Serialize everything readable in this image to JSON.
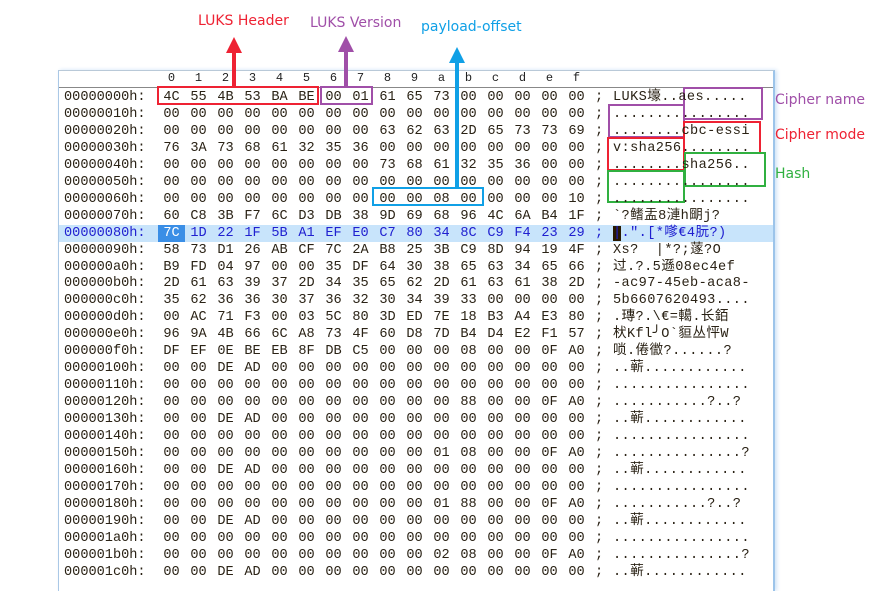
{
  "annotations": {
    "luks_header": {
      "label": "LUKS Header",
      "color": "#ee2233"
    },
    "luks_version": {
      "label": "LUKS Version",
      "color": "#a04fa8"
    },
    "payload_offset": {
      "label": "payload-offset",
      "color": "#10a0e6"
    },
    "cipher_name": {
      "label": "Cipher name",
      "color": "#a04fa8"
    },
    "cipher_mode": {
      "label": "Cipher mode",
      "color": "#ee2233"
    },
    "hash": {
      "label": "Hash",
      "color": "#30b040"
    }
  },
  "hex_editor": {
    "columns": [
      "0",
      "1",
      "2",
      "3",
      "4",
      "5",
      "6",
      "7",
      "8",
      "9",
      "a",
      "b",
      "c",
      "d",
      "e",
      "f"
    ],
    "selected_row": 8,
    "selected_col": 0,
    "rows": [
      {
        "addr": "00000000h:",
        "hex": [
          "4C",
          "55",
          "4B",
          "53",
          "BA",
          "BE",
          "00",
          "01",
          "61",
          "65",
          "73",
          "00",
          "00",
          "00",
          "00",
          "00"
        ],
        "ascii": "LUKS壕..aes....."
      },
      {
        "addr": "00000010h:",
        "hex": [
          "00",
          "00",
          "00",
          "00",
          "00",
          "00",
          "00",
          "00",
          "00",
          "00",
          "00",
          "00",
          "00",
          "00",
          "00",
          "00"
        ],
        "ascii": "................"
      },
      {
        "addr": "00000020h:",
        "hex": [
          "00",
          "00",
          "00",
          "00",
          "00",
          "00",
          "00",
          "00",
          "63",
          "62",
          "63",
          "2D",
          "65",
          "73",
          "73",
          "69"
        ],
        "ascii": "........cbc-essi"
      },
      {
        "addr": "00000030h:",
        "hex": [
          "76",
          "3A",
          "73",
          "68",
          "61",
          "32",
          "35",
          "36",
          "00",
          "00",
          "00",
          "00",
          "00",
          "00",
          "00",
          "00"
        ],
        "ascii": "v:sha256........"
      },
      {
        "addr": "00000040h:",
        "hex": [
          "00",
          "00",
          "00",
          "00",
          "00",
          "00",
          "00",
          "00",
          "73",
          "68",
          "61",
          "32",
          "35",
          "36",
          "00",
          "00"
        ],
        "ascii": "........sha256.."
      },
      {
        "addr": "00000050h:",
        "hex": [
          "00",
          "00",
          "00",
          "00",
          "00",
          "00",
          "00",
          "00",
          "00",
          "00",
          "00",
          "00",
          "00",
          "00",
          "00",
          "00"
        ],
        "ascii": "................"
      },
      {
        "addr": "00000060h:",
        "hex": [
          "00",
          "00",
          "00",
          "00",
          "00",
          "00",
          "00",
          "00",
          "00",
          "00",
          "08",
          "00",
          "00",
          "00",
          "00",
          "10"
        ],
        "ascii": "................"
      },
      {
        "addr": "00000070h:",
        "hex": [
          "60",
          "C8",
          "3B",
          "F7",
          "6C",
          "D3",
          "DB",
          "38",
          "9D",
          "69",
          "68",
          "96",
          "4C",
          "6A",
          "B4",
          "1F"
        ],
        "ascii": "`?鳍盂8漣h朙j?"
      },
      {
        "addr": "00000080h:",
        "hex": [
          "7C",
          "1D",
          "22",
          "1F",
          "5B",
          "A1",
          "EF",
          "E0",
          "C7",
          "80",
          "34",
          "8C",
          "C9",
          "F4",
          "23",
          "29"
        ],
        "ascii": "|.\".[*嗲€4朊?)"
      },
      {
        "addr": "00000090h:",
        "hex": [
          "58",
          "73",
          "D1",
          "26",
          "AB",
          "CF",
          "7C",
          "2A",
          "B8",
          "25",
          "3B",
          "C9",
          "8D",
          "94",
          "19",
          "4F"
        ],
        "ascii": "Xs?  |*?;蓫?O"
      },
      {
        "addr": "000000a0h:",
        "hex": [
          "B9",
          "FD",
          "04",
          "97",
          "00",
          "00",
          "35",
          "DF",
          "64",
          "30",
          "38",
          "65",
          "63",
          "34",
          "65",
          "66"
        ],
        "ascii": "过.?.5遜08ec4ef"
      },
      {
        "addr": "000000b0h:",
        "hex": [
          "2D",
          "61",
          "63",
          "39",
          "37",
          "2D",
          "34",
          "35",
          "65",
          "62",
          "2D",
          "61",
          "63",
          "61",
          "38",
          "2D"
        ],
        "ascii": "-ac97-45eb-aca8-"
      },
      {
        "addr": "000000c0h:",
        "hex": [
          "35",
          "62",
          "36",
          "36",
          "30",
          "37",
          "36",
          "32",
          "30",
          "34",
          "39",
          "33",
          "00",
          "00",
          "00",
          "00"
        ],
        "ascii": "5b6607620493...."
      },
      {
        "addr": "000000d0h:",
        "hex": [
          "00",
          "AC",
          "71",
          "F3",
          "00",
          "03",
          "5C",
          "80",
          "3D",
          "ED",
          "7E",
          "18",
          "B3",
          "A4",
          "E3",
          "80"
        ],
        "ascii": ".瑼?.\\€=轕.长銆"
      },
      {
        "addr": "000000e0h:",
        "hex": [
          "96",
          "9A",
          "4B",
          "66",
          "6C",
          "A8",
          "73",
          "4F",
          "60",
          "D8",
          "7D",
          "B4",
          "D4",
          "E2",
          "F1",
          "57"
        ],
        "ascii": "枤Kfl╯O`貆丛怦W"
      },
      {
        "addr": "000000f0h:",
        "hex": [
          "DF",
          "EF",
          "0E",
          "BE",
          "EB",
          "8F",
          "DB",
          "C5",
          "00",
          "00",
          "00",
          "08",
          "00",
          "00",
          "0F",
          "A0"
        ],
        "ascii": "唢.倦徾?......?"
      },
      {
        "addr": "00000100h:",
        "hex": [
          "00",
          "00",
          "DE",
          "AD",
          "00",
          "00",
          "00",
          "00",
          "00",
          "00",
          "00",
          "00",
          "00",
          "00",
          "00",
          "00"
        ],
        "ascii": "..蕲............"
      },
      {
        "addr": "00000110h:",
        "hex": [
          "00",
          "00",
          "00",
          "00",
          "00",
          "00",
          "00",
          "00",
          "00",
          "00",
          "00",
          "00",
          "00",
          "00",
          "00",
          "00"
        ],
        "ascii": "................"
      },
      {
        "addr": "00000120h:",
        "hex": [
          "00",
          "00",
          "00",
          "00",
          "00",
          "00",
          "00",
          "00",
          "00",
          "00",
          "00",
          "88",
          "00",
          "00",
          "0F",
          "A0"
        ],
        "ascii": "...........?..?"
      },
      {
        "addr": "00000130h:",
        "hex": [
          "00",
          "00",
          "DE",
          "AD",
          "00",
          "00",
          "00",
          "00",
          "00",
          "00",
          "00",
          "00",
          "00",
          "00",
          "00",
          "00"
        ],
        "ascii": "..蕲............"
      },
      {
        "addr": "00000140h:",
        "hex": [
          "00",
          "00",
          "00",
          "00",
          "00",
          "00",
          "00",
          "00",
          "00",
          "00",
          "00",
          "00",
          "00",
          "00",
          "00",
          "00"
        ],
        "ascii": "................"
      },
      {
        "addr": "00000150h:",
        "hex": [
          "00",
          "00",
          "00",
          "00",
          "00",
          "00",
          "00",
          "00",
          "00",
          "00",
          "01",
          "08",
          "00",
          "00",
          "0F",
          "A0"
        ],
        "ascii": "...............?"
      },
      {
        "addr": "00000160h:",
        "hex": [
          "00",
          "00",
          "DE",
          "AD",
          "00",
          "00",
          "00",
          "00",
          "00",
          "00",
          "00",
          "00",
          "00",
          "00",
          "00",
          "00"
        ],
        "ascii": "..蕲............"
      },
      {
        "addr": "00000170h:",
        "hex": [
          "00",
          "00",
          "00",
          "00",
          "00",
          "00",
          "00",
          "00",
          "00",
          "00",
          "00",
          "00",
          "00",
          "00",
          "00",
          "00"
        ],
        "ascii": "................"
      },
      {
        "addr": "00000180h:",
        "hex": [
          "00",
          "00",
          "00",
          "00",
          "00",
          "00",
          "00",
          "00",
          "00",
          "00",
          "01",
          "88",
          "00",
          "00",
          "0F",
          "A0"
        ],
        "ascii": "...........?..?"
      },
      {
        "addr": "00000190h:",
        "hex": [
          "00",
          "00",
          "DE",
          "AD",
          "00",
          "00",
          "00",
          "00",
          "00",
          "00",
          "00",
          "00",
          "00",
          "00",
          "00",
          "00"
        ],
        "ascii": "..蕲............"
      },
      {
        "addr": "000001a0h:",
        "hex": [
          "00",
          "00",
          "00",
          "00",
          "00",
          "00",
          "00",
          "00",
          "00",
          "00",
          "00",
          "00",
          "00",
          "00",
          "00",
          "00"
        ],
        "ascii": "................"
      },
      {
        "addr": "000001b0h:",
        "hex": [
          "00",
          "00",
          "00",
          "00",
          "00",
          "00",
          "00",
          "00",
          "00",
          "00",
          "02",
          "08",
          "00",
          "00",
          "0F",
          "A0"
        ],
        "ascii": "...............?"
      },
      {
        "addr": "000001c0h:",
        "hex": [
          "00",
          "00",
          "DE",
          "AD",
          "00",
          "00",
          "00",
          "00",
          "00",
          "00",
          "00",
          "00",
          "00",
          "00",
          "00",
          "00"
        ],
        "ascii": "..蕲............"
      }
    ]
  }
}
